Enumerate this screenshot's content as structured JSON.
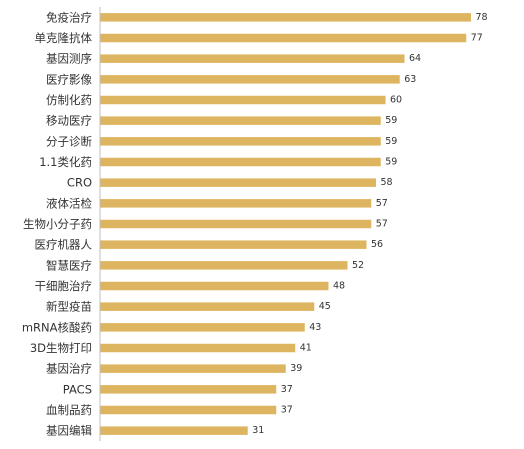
{
  "chart_data": {
    "type": "bar",
    "orientation": "horizontal",
    "categories": [
      "免疫治疗",
      "单克隆抗体",
      "基因测序",
      "医疗影像",
      "仿制化药",
      "移动医疗",
      "分子诊断",
      "1.1类化药",
      "CRO",
      "液体活检",
      "生物小分子药",
      "医疗机器人",
      "智慧医疗",
      "干细胞治疗",
      "新型疫苗",
      "mRNA核酸药",
      "3D生物打印",
      "基因治疗",
      "PACS",
      "血制品药",
      "基因编辑"
    ],
    "values": [
      78,
      77,
      64,
      63,
      60,
      59,
      59,
      59,
      58,
      57,
      57,
      56,
      52,
      48,
      45,
      43,
      41,
      39,
      37,
      37,
      31
    ],
    "value_labels": [
      "78",
      "77",
      "64",
      "63",
      "60",
      "59",
      "59",
      "59",
      "58",
      "57",
      "57",
      "56",
      "52",
      "48",
      "45",
      "43",
      "41",
      "39",
      "37",
      "37",
      "31"
    ],
    "xlim": [
      0,
      80
    ],
    "bar_color": "#DDB560",
    "axis_color": "#BFBFBF",
    "grid": false,
    "legend": "none"
  }
}
